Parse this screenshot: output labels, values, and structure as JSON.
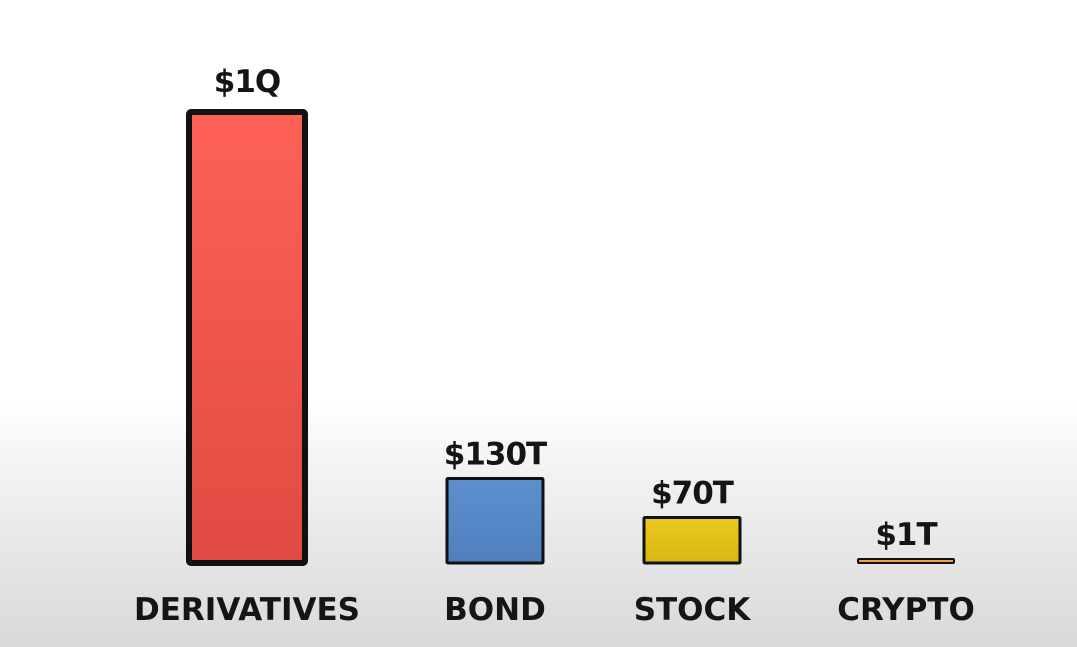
{
  "chart_data": {
    "type": "bar",
    "title": "",
    "xlabel": "",
    "ylabel": "",
    "grid": false,
    "legend": "none",
    "categories": [
      "DERIVATIVES",
      "BOND",
      "STOCK",
      "CRYPTO"
    ],
    "values": [
      1000,
      130,
      70,
      1
    ],
    "value_unit": "trillion USD",
    "value_labels": [
      "$1Q",
      "$130T",
      "$70T",
      "$1T"
    ],
    "colors": [
      "#f55a50",
      "#5b8bc9",
      "#e3c21a",
      "#f0a23c"
    ]
  }
}
